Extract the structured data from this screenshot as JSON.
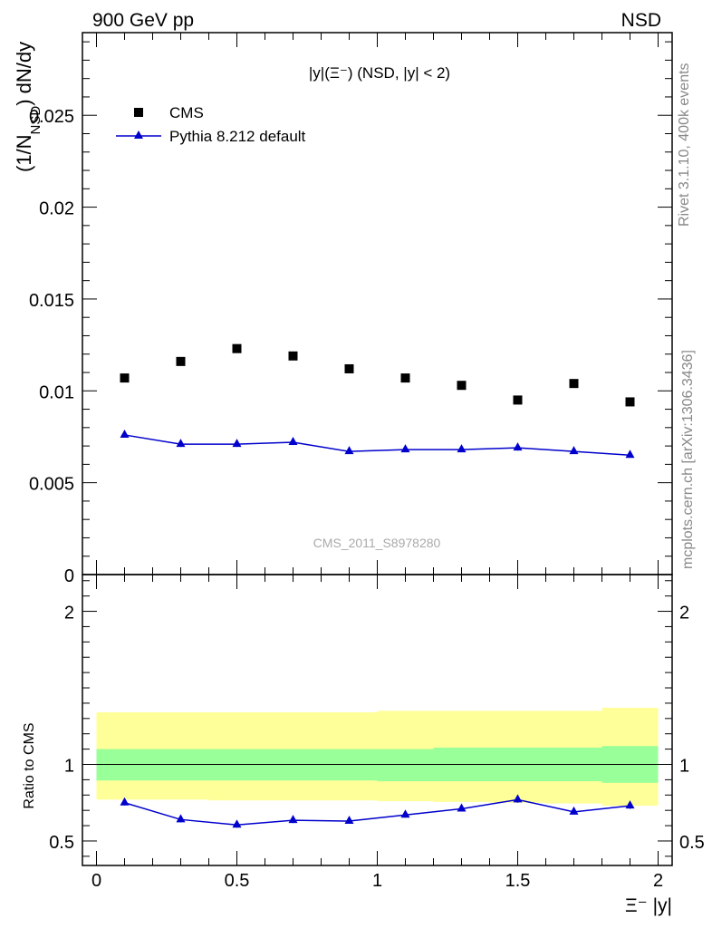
{
  "header": {
    "energy_label": "900 GeV pp",
    "process_label": "NSD"
  },
  "side": {
    "rivet_label": "Rivet 3.1.10,  400k events",
    "mcplots_label": "mcplots.cern.ch [arXiv:1306.3436]"
  },
  "chart_data": [
    {
      "type": "scatter",
      "title": "|y|(Ξ⁻) (NSD, |y| < 2)",
      "ylabel": "(1/N_NSD) dN/dy",
      "watermark": "CMS_2011_S8978280",
      "xlim": [
        -0.05,
        2.05
      ],
      "ylim": [
        0,
        0.0295
      ],
      "yticks": [
        0,
        0.005,
        0.01,
        0.015,
        0.02,
        0.025
      ],
      "ytick_labels": [
        "0",
        "0.005",
        "0.01",
        "0.015",
        "0.02",
        "0.025"
      ],
      "legend_position": "top-left",
      "series": [
        {
          "name": "CMS",
          "marker": "square",
          "color": "#000000",
          "x": [
            0.1,
            0.3,
            0.5,
            0.7,
            0.9,
            1.1,
            1.3,
            1.5,
            1.7,
            1.9
          ],
          "y": [
            0.0107,
            0.0116,
            0.0123,
            0.0119,
            0.0112,
            0.0107,
            0.0103,
            0.0095,
            0.0104,
            0.0094
          ]
        },
        {
          "name": "Pythia 8.212 default",
          "marker": "triangle",
          "color": "#0000cc",
          "x": [
            0.1,
            0.3,
            0.5,
            0.7,
            0.9,
            1.1,
            1.3,
            1.5,
            1.7,
            1.9
          ],
          "y": [
            0.0076,
            0.0071,
            0.0071,
            0.0072,
            0.0067,
            0.0068,
            0.0068,
            0.0069,
            0.0067,
            0.0065
          ],
          "yerr": [
            0.00015,
            0.00015,
            0.00015,
            0.00015,
            0.00012,
            0.00012,
            0.00012,
            0.00015,
            0.00012,
            0.00012
          ]
        }
      ]
    },
    {
      "type": "line",
      "ylabel": "Ratio to CMS",
      "xlabel": "Ξ⁻ |y|",
      "xlim": [
        -0.05,
        2.05
      ],
      "ylim": [
        0.34,
        2.24
      ],
      "xticks": [
        0,
        0.5,
        1,
        1.5,
        2
      ],
      "xtick_labels": [
        "0",
        "0.5",
        "1",
        "1.5",
        "2"
      ],
      "yticks": [
        0.5,
        1,
        2
      ],
      "ytick_labels": [
        "0.5",
        "1",
        "2"
      ],
      "reference_line": 1,
      "bands": {
        "edges": [
          0,
          0.2,
          0.4,
          0.6,
          0.8,
          1.0,
          1.2,
          1.4,
          1.6,
          1.8,
          2.0
        ],
        "green_low": [
          0.895,
          0.895,
          0.895,
          0.895,
          0.895,
          0.89,
          0.89,
          0.89,
          0.89,
          0.88
        ],
        "green_high": [
          1.1,
          1.1,
          1.1,
          1.1,
          1.1,
          1.1,
          1.11,
          1.11,
          1.11,
          1.12
        ],
        "yellow_low": [
          0.77,
          0.77,
          0.765,
          0.765,
          0.765,
          0.76,
          0.755,
          0.75,
          0.745,
          0.73
        ],
        "yellow_high": [
          1.34,
          1.34,
          1.34,
          1.34,
          1.34,
          1.35,
          1.35,
          1.35,
          1.35,
          1.37
        ],
        "green_color": "#99ff99",
        "yellow_color": "#ffff99"
      },
      "series": [
        {
          "name": "Pythia 8.212 default",
          "color": "#0000cc",
          "x": [
            0.1,
            0.3,
            0.5,
            0.7,
            0.9,
            1.1,
            1.3,
            1.5,
            1.7,
            1.9
          ],
          "y": [
            0.75,
            0.64,
            0.605,
            0.635,
            0.63,
            0.67,
            0.71,
            0.77,
            0.69,
            0.73
          ],
          "yerr": [
            0.018,
            0.018,
            0.018,
            0.018,
            0.018,
            0.018,
            0.018,
            0.02,
            0.018,
            0.02
          ]
        }
      ]
    }
  ]
}
